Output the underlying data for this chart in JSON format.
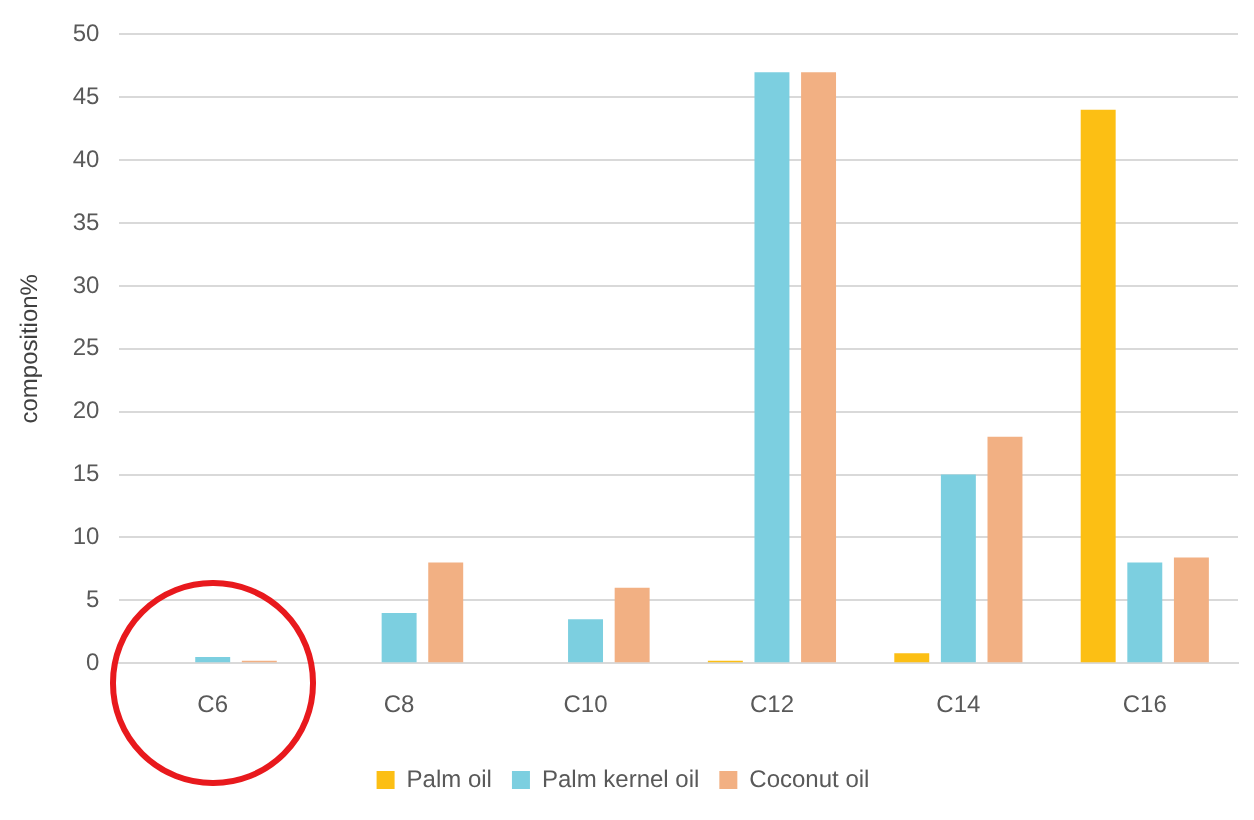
{
  "chart_data": {
    "type": "bar",
    "ylabel": "composition%",
    "categories": [
      "C6",
      "C8",
      "C10",
      "C12",
      "C14",
      "C16"
    ],
    "series": [
      {
        "name": "Palm oil",
        "color": "#fcbf14",
        "values": [
          0,
          0,
          0,
          0.2,
          0.8,
          44
        ]
      },
      {
        "name": "Palm kernel oil",
        "color": "#7ccfe0",
        "values": [
          0.5,
          4,
          3.5,
          47,
          15,
          8
        ]
      },
      {
        "name": "Coconut oil",
        "color": "#f2b083",
        "values": [
          0.2,
          8,
          6,
          47,
          18,
          8.4
        ]
      }
    ],
    "ylim": [
      0,
      50
    ],
    "yticks": [
      0,
      5,
      10,
      15,
      20,
      25,
      30,
      35,
      40,
      45,
      50
    ],
    "grid": "y",
    "legend": "bottom"
  }
}
